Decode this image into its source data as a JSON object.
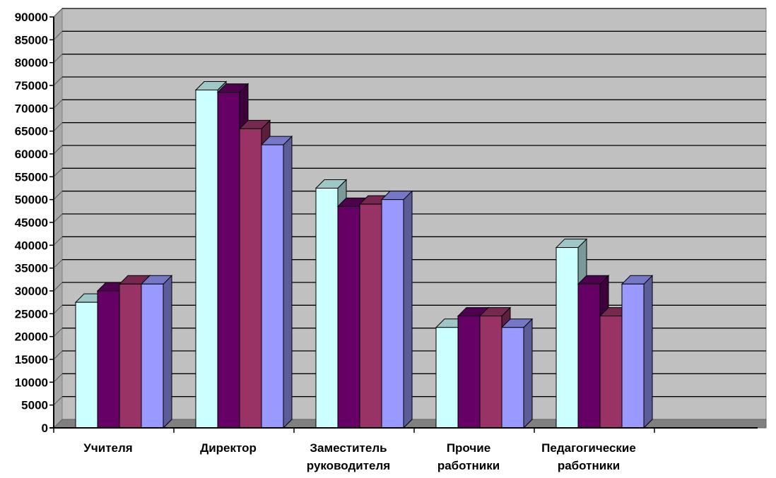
{
  "chart_data": {
    "type": "bar",
    "style": "3d-clustered-column",
    "title": "",
    "xlabel": "",
    "ylabel": "",
    "ylim": [
      0,
      90000
    ],
    "ytick_step": 5000,
    "yticks": [
      "0",
      "5000",
      "10000",
      "15000",
      "20000",
      "25000",
      "30000",
      "35000",
      "40000",
      "45000",
      "50000",
      "55000",
      "60000",
      "65000",
      "70000",
      "75000",
      "80000",
      "85000",
      "90000"
    ],
    "grid": true,
    "legend": "none",
    "categories": [
      [
        "Учителя"
      ],
      [
        "Директор"
      ],
      [
        "Заместитель",
        "руководителя"
      ],
      [
        "Прочие",
        "работники"
      ],
      [
        "Педагогические",
        "работники"
      ]
    ],
    "series": [
      {
        "color": "#ccffff",
        "values": [
          27500,
          74000,
          52500,
          22000,
          39500
        ]
      },
      {
        "color": "#660066",
        "values": [
          30000,
          73500,
          48500,
          24500,
          31500
        ]
      },
      {
        "color": "#993366",
        "values": [
          31500,
          65500,
          49000,
          24500,
          24500
        ]
      },
      {
        "color": "#9999ff",
        "values": [
          31500,
          62000,
          50000,
          22000,
          31500
        ]
      }
    ],
    "colors": {
      "plot_background": "#c0c0c0",
      "floor": "#808080",
      "gridline": "#000000"
    }
  }
}
